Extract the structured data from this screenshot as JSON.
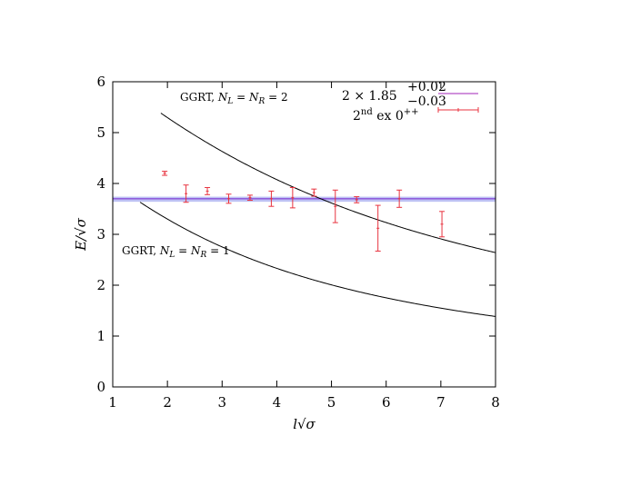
{
  "chart_data": {
    "type": "scatter",
    "xlabel": "l√σ",
    "ylabel": "E/√σ",
    "xlim": [
      1,
      8
    ],
    "ylim": [
      0,
      6
    ],
    "x_ticks": [
      "1",
      "2",
      "3",
      "4",
      "5",
      "6",
      "7",
      "8"
    ],
    "y_ticks": [
      "0",
      "1",
      "2",
      "3",
      "4",
      "5",
      "6"
    ],
    "grid": false,
    "legend_position": "top-right",
    "band": {
      "name": "2 × 1.85 +0.02 −0.03",
      "center": 3.7,
      "low": 3.64,
      "high": 3.74,
      "color": "#8a4fd8",
      "fill": "#a8aef0"
    },
    "series": [
      {
        "name": "2nd ex 0++",
        "color": "#e8333f",
        "points": [
          {
            "x": 1.95,
            "y": 4.2,
            "yerr": 0.04
          },
          {
            "x": 2.34,
            "y": 3.8,
            "yerr": 0.17
          },
          {
            "x": 2.73,
            "y": 3.85,
            "yerr": 0.07
          },
          {
            "x": 3.12,
            "y": 3.7,
            "yerr": 0.09
          },
          {
            "x": 3.51,
            "y": 3.72,
            "yerr": 0.05
          },
          {
            "x": 3.9,
            "y": 3.7,
            "yerr": 0.15
          },
          {
            "x": 4.29,
            "y": 3.72,
            "yerr": 0.2
          },
          {
            "x": 4.68,
            "y": 3.82,
            "yerr": 0.07
          },
          {
            "x": 5.07,
            "y": 3.55,
            "yerr": 0.32
          },
          {
            "x": 5.46,
            "y": 3.68,
            "yerr": 0.06
          },
          {
            "x": 5.85,
            "y": 3.12,
            "yerr": 0.45
          },
          {
            "x": 6.24,
            "y": 3.7,
            "yerr": 0.17
          },
          {
            "x": 7.02,
            "y": 3.2,
            "yerr": 0.25
          }
        ]
      }
    ],
    "curves": [
      {
        "label_prefix": "GGRT, ",
        "label_math": "N",
        "label_sub1": "L",
        "label_mid": " = ",
        "label_sub2": "R",
        "label_end": " = 1",
        "N": 1,
        "x_start": 1.5,
        "x_end": 8.0,
        "color": "#000000"
      },
      {
        "label_prefix": "GGRT, ",
        "label_math": "N",
        "label_sub1": "L",
        "label_mid": " = ",
        "label_sub2": "R",
        "label_end": " = 2",
        "N": 2,
        "x_start": 1.88,
        "x_end": 8.0,
        "color": "#000000"
      }
    ],
    "legend": [
      {
        "base": "2 × 1.85",
        "sup": "+0.02",
        "sub": "−0.03",
        "kind": "line",
        "color": "#b44fc8"
      },
      {
        "base": "2",
        "sup": "nd",
        "mid": " ex 0",
        "sup2": "++",
        "kind": "errorbar",
        "color": "#e8333f"
      }
    ]
  }
}
